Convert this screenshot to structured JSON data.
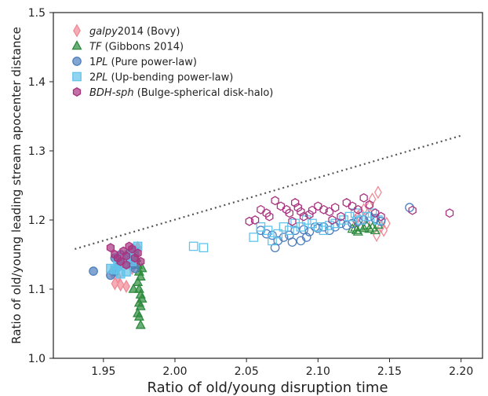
{
  "chart_data": {
    "type": "scatter",
    "xlabel": "Ratio of old/young disruption time",
    "ylabel": "Ratio of old/young leading stream apocenter distance",
    "xlim": [
      1.915,
      2.215
    ],
    "ylim": [
      1.0,
      1.5
    ],
    "xticks": [
      "1.95",
      "2.00",
      "2.05",
      "2.10",
      "2.15",
      "2.20"
    ],
    "yticks": [
      "1.0",
      "1.1",
      "1.2",
      "1.3",
      "1.4",
      "1.5"
    ],
    "grid": false,
    "legend_position": "top-left",
    "reference_line": {
      "style": "dotted",
      "color": "#555555",
      "x": [
        1.93,
        2.2
      ],
      "y": [
        1.158,
        1.322
      ]
    },
    "series": [
      {
        "name": "galpy2014 (Bovy)",
        "name_italic": "galpy",
        "name_rest": "2014 (Bovy)",
        "marker": "diamond",
        "color": "#f08a96",
        "points": [
          [
            1.958,
            1.108
          ],
          [
            1.962,
            1.106
          ],
          [
            1.966,
            1.104
          ],
          [
            1.96,
            1.118
          ],
          [
            1.97,
            1.13
          ],
          [
            1.964,
            1.14
          ],
          [
            1.968,
            1.15
          ],
          [
            1.972,
            1.155
          ],
          [
            1.956,
            1.125
          ],
          [
            1.974,
            1.16
          ],
          [
            2.128,
            1.205
          ],
          [
            2.13,
            1.21
          ],
          [
            2.132,
            1.215
          ],
          [
            2.136,
            1.22
          ],
          [
            2.138,
            1.23
          ],
          [
            2.142,
            1.24
          ],
          [
            2.14,
            1.2
          ],
          [
            2.144,
            1.19
          ],
          [
            2.146,
            1.185
          ],
          [
            2.134,
            1.195
          ],
          [
            2.126,
            1.2
          ],
          [
            2.148,
            1.195
          ],
          [
            2.141,
            1.178
          ]
        ]
      },
      {
        "name": "TF (Gibbons 2014)",
        "name_italic": "TF",
        "name_rest": " (Gibbons 2014)",
        "marker": "triangle",
        "color": "#2e8b3e",
        "points": [
          [
            1.972,
            1.155
          ],
          [
            1.973,
            1.145
          ],
          [
            1.974,
            1.135
          ],
          [
            1.975,
            1.125
          ],
          [
            1.976,
            1.118
          ],
          [
            1.974,
            1.11
          ],
          [
            1.975,
            1.1
          ],
          [
            1.976,
            1.092
          ],
          [
            1.977,
            1.086
          ],
          [
            1.975,
            1.08
          ],
          [
            1.976,
            1.075
          ],
          [
            1.974,
            1.065
          ],
          [
            1.975,
            1.06
          ],
          [
            1.976,
            1.048
          ],
          [
            1.977,
            1.13
          ],
          [
            1.971,
            1.1
          ],
          [
            2.124,
            1.187
          ],
          [
            2.127,
            1.185
          ],
          [
            2.13,
            1.19
          ],
          [
            2.132,
            1.188
          ],
          [
            2.134,
            1.192
          ],
          [
            2.136,
            1.187
          ],
          [
            2.138,
            1.189
          ],
          [
            2.14,
            1.185
          ],
          [
            2.128,
            1.183
          ],
          [
            2.126,
            1.189
          ],
          [
            2.142,
            1.193
          ]
        ]
      },
      {
        "name": "1PL (Pure power-law)",
        "name_prefix": "1",
        "name_italic": "PL",
        "name_rest": " (Pure power-law)",
        "marker": "circle",
        "color": "#4f7fbf",
        "points": [
          [
            1.943,
            1.126
          ],
          [
            1.955,
            1.12
          ],
          [
            1.958,
            1.125
          ],
          [
            1.96,
            1.132
          ],
          [
            1.962,
            1.14
          ],
          [
            1.964,
            1.145
          ],
          [
            1.966,
            1.148
          ],
          [
            1.968,
            1.142
          ],
          [
            1.97,
            1.135
          ],
          [
            1.972,
            1.13
          ],
          [
            1.962,
            1.15
          ],
          [
            1.958,
            1.145
          ],
          [
            2.06,
            1.185
          ],
          [
            2.064,
            1.18
          ],
          [
            2.068,
            1.178
          ],
          [
            2.07,
            1.16
          ],
          [
            2.072,
            1.17
          ],
          [
            2.076,
            1.175
          ],
          [
            2.08,
            1.178
          ],
          [
            2.084,
            1.185
          ],
          [
            2.088,
            1.17
          ],
          [
            2.09,
            1.186
          ],
          [
            2.094,
            1.183
          ],
          [
            2.098,
            1.19
          ],
          [
            2.1,
            1.188
          ],
          [
            2.104,
            1.19
          ],
          [
            2.108,
            1.185
          ],
          [
            2.112,
            1.19
          ],
          [
            2.116,
            1.195
          ],
          [
            2.12,
            1.192
          ],
          [
            2.124,
            1.195
          ],
          [
            2.128,
            1.198
          ],
          [
            2.132,
            1.2
          ],
          [
            2.136,
            1.205
          ],
          [
            2.14,
            1.202
          ],
          [
            2.144,
            1.198
          ],
          [
            2.164,
            1.218
          ],
          [
            2.092,
            1.175
          ],
          [
            2.082,
            1.168
          ]
        ]
      },
      {
        "name": "2PL (Up-bending power-law)",
        "name_prefix": "2",
        "name_italic": "PL",
        "name_rest": " (Up-bending power-law)",
        "marker": "square",
        "color": "#62c3ea",
        "points": [
          [
            1.955,
            1.13
          ],
          [
            1.958,
            1.128
          ],
          [
            1.96,
            1.135
          ],
          [
            1.962,
            1.122
          ],
          [
            1.964,
            1.138
          ],
          [
            1.966,
            1.145
          ],
          [
            1.968,
            1.15
          ],
          [
            1.97,
            1.14
          ],
          [
            1.972,
            1.155
          ],
          [
            1.974,
            1.162
          ],
          [
            1.96,
            1.145
          ],
          [
            1.966,
            1.125
          ],
          [
            2.013,
            1.162
          ],
          [
            2.02,
            1.16
          ],
          [
            2.055,
            1.175
          ],
          [
            2.06,
            1.19
          ],
          [
            2.065,
            1.185
          ],
          [
            2.068,
            1.17
          ],
          [
            2.072,
            1.18
          ],
          [
            2.076,
            1.19
          ],
          [
            2.08,
            1.185
          ],
          [
            2.084,
            1.195
          ],
          [
            2.088,
            1.19
          ],
          [
            2.092,
            1.2
          ],
          [
            2.096,
            1.195
          ],
          [
            2.1,
            1.19
          ],
          [
            2.104,
            1.185
          ],
          [
            2.108,
            1.192
          ],
          [
            2.112,
            1.195
          ],
          [
            2.118,
            1.2
          ],
          [
            2.122,
            1.205
          ],
          [
            2.126,
            1.21
          ],
          [
            2.13,
            1.2
          ],
          [
            2.134,
            1.205
          ],
          [
            2.138,
            1.21
          ],
          [
            2.142,
            1.2
          ]
        ]
      },
      {
        "name": "BDH-sph (Bulge-spherical disk-halo)",
        "name_italic": "BDH-sph",
        "name_rest": " (Bulge-spherical disk-halo)",
        "marker": "hexagon",
        "color": "#a8337f",
        "points": [
          [
            1.955,
            1.16
          ],
          [
            1.958,
            1.15
          ],
          [
            1.96,
            1.145
          ],
          [
            1.962,
            1.14
          ],
          [
            1.964,
            1.155
          ],
          [
            1.966,
            1.148
          ],
          [
            1.968,
            1.162
          ],
          [
            1.97,
            1.158
          ],
          [
            1.972,
            1.145
          ],
          [
            1.974,
            1.152
          ],
          [
            1.976,
            1.14
          ],
          [
            1.966,
            1.135
          ],
          [
            2.052,
            1.198
          ],
          [
            2.056,
            1.2
          ],
          [
            2.06,
            1.215
          ],
          [
            2.064,
            1.21
          ],
          [
            2.066,
            1.205
          ],
          [
            2.07,
            1.228
          ],
          [
            2.074,
            1.22
          ],
          [
            2.078,
            1.215
          ],
          [
            2.08,
            1.21
          ],
          [
            2.084,
            1.225
          ],
          [
            2.086,
            1.218
          ],
          [
            2.088,
            1.212
          ],
          [
            2.09,
            1.205
          ],
          [
            2.094,
            1.208
          ],
          [
            2.096,
            1.214
          ],
          [
            2.1,
            1.22
          ],
          [
            2.104,
            1.215
          ],
          [
            2.108,
            1.212
          ],
          [
            2.112,
            1.218
          ],
          [
            2.116,
            1.205
          ],
          [
            2.12,
            1.225
          ],
          [
            2.124,
            1.22
          ],
          [
            2.128,
            1.215
          ],
          [
            2.132,
            1.232
          ],
          [
            2.136,
            1.222
          ],
          [
            2.14,
            1.21
          ],
          [
            2.144,
            1.205
          ],
          [
            2.166,
            1.214
          ],
          [
            2.192,
            1.21
          ],
          [
            2.082,
            1.198
          ],
          [
            2.11,
            1.2
          ]
        ]
      }
    ]
  }
}
